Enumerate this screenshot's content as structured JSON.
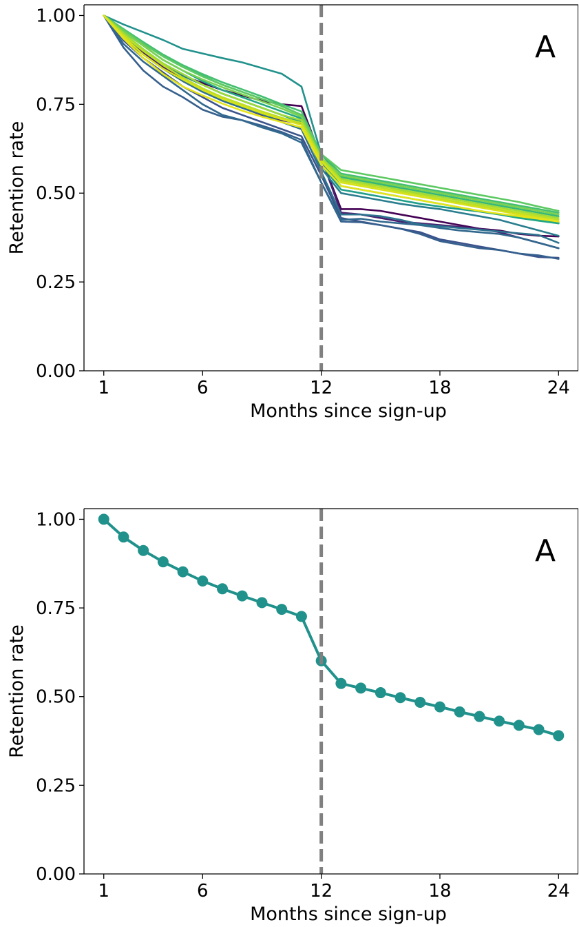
{
  "chart_data": [
    {
      "type": "line",
      "panel_label": "A",
      "xlabel": "Months since sign-up",
      "ylabel": "Retention rate",
      "xlim": [
        0,
        25
      ],
      "ylim": [
        0,
        1.03
      ],
      "xticks": [
        1,
        6,
        12,
        18,
        24
      ],
      "yticks": [
        0,
        0.25,
        0.5,
        0.75,
        1.0
      ],
      "ytick_labels": [
        "0.00",
        "0.25",
        "0.50",
        "0.75",
        "1.00"
      ],
      "xtick_labels": [
        "1",
        "6",
        "12",
        "18",
        "24"
      ],
      "vline": {
        "x": 12,
        "style": "dashed",
        "color": "#808080"
      },
      "grid": false,
      "legend": "none",
      "x": [
        1,
        2,
        3,
        4,
        5,
        6,
        7,
        8,
        9,
        10,
        11,
        12,
        13,
        14,
        15,
        16,
        17,
        18,
        19,
        20,
        21,
        22,
        23,
        24
      ],
      "series": [
        {
          "color": "#21918c",
          "values": [
            1.0,
            0.975,
            0.953,
            0.931,
            0.906,
            0.893,
            0.88,
            0.868,
            0.852,
            0.836,
            0.8,
            0.61,
            0.548,
            0.535,
            0.525,
            0.51,
            0.496,
            0.484,
            0.473,
            0.462,
            0.451,
            0.44,
            0.43,
            0.415
          ]
        },
        {
          "color": "#440154",
          "values": [
            1.0,
            0.95,
            0.9,
            0.86,
            0.83,
            0.81,
            0.79,
            0.775,
            0.76,
            0.75,
            0.745,
            0.6,
            0.455,
            0.455,
            0.45,
            0.44,
            0.43,
            0.42,
            0.41,
            0.4,
            0.395,
            0.385,
            0.38,
            0.378
          ]
        },
        {
          "color": "#481f70",
          "values": [
            1.0,
            0.94,
            0.895,
            0.855,
            0.82,
            0.79,
            0.76,
            0.74,
            0.72,
            0.705,
            0.695,
            0.6,
            0.445,
            0.44,
            0.43,
            0.42,
            0.415,
            0.41,
            0.405,
            0.4,
            0.39,
            0.375,
            0.36,
            0.345
          ]
        },
        {
          "color": "#3b528b",
          "values": [
            1.0,
            0.93,
            0.88,
            0.84,
            0.8,
            0.77,
            0.74,
            0.72,
            0.7,
            0.68,
            0.66,
            0.55,
            0.43,
            0.42,
            0.41,
            0.4,
            0.39,
            0.37,
            0.36,
            0.35,
            0.34,
            0.33,
            0.32,
            0.318
          ]
        },
        {
          "color": "#355f8d",
          "values": [
            1.0,
            0.91,
            0.845,
            0.8,
            0.77,
            0.735,
            0.715,
            0.705,
            0.69,
            0.672,
            0.65,
            0.53,
            0.42,
            0.418,
            0.41,
            0.4,
            0.385,
            0.365,
            0.355,
            0.345,
            0.34,
            0.33,
            0.325,
            0.315
          ]
        },
        {
          "color": "#31688e",
          "values": [
            1.0,
            0.92,
            0.87,
            0.83,
            0.79,
            0.75,
            0.72,
            0.705,
            0.685,
            0.668,
            0.642,
            0.53,
            0.425,
            0.428,
            0.42,
            0.415,
            0.41,
            0.402,
            0.395,
            0.39,
            0.385,
            0.375,
            0.36,
            0.345
          ]
        },
        {
          "color": "#2c728e",
          "values": [
            1.0,
            0.935,
            0.89,
            0.85,
            0.815,
            0.785,
            0.76,
            0.74,
            0.722,
            0.7,
            0.68,
            0.56,
            0.44,
            0.44,
            0.435,
            0.425,
            0.412,
            0.407,
            0.402,
            0.397,
            0.392,
            0.387,
            0.382,
            0.36
          ]
        },
        {
          "color": "#287d8e",
          "values": [
            1.0,
            0.94,
            0.9,
            0.86,
            0.83,
            0.805,
            0.78,
            0.76,
            0.74,
            0.72,
            0.7,
            0.57,
            0.5,
            0.49,
            0.48,
            0.47,
            0.462,
            0.455,
            0.445,
            0.435,
            0.425,
            0.41,
            0.395,
            0.38
          ]
        },
        {
          "color": "#1f9e89",
          "values": [
            1.0,
            0.95,
            0.905,
            0.865,
            0.835,
            0.805,
            0.78,
            0.76,
            0.74,
            0.72,
            0.7,
            0.58,
            0.51,
            0.5,
            0.49,
            0.48,
            0.47,
            0.462,
            0.455,
            0.448,
            0.44,
            0.433,
            0.425,
            0.418
          ]
        },
        {
          "color": "#22a884",
          "values": [
            1.0,
            0.955,
            0.915,
            0.875,
            0.845,
            0.815,
            0.79,
            0.77,
            0.75,
            0.73,
            0.71,
            0.59,
            0.52,
            0.51,
            0.5,
            0.49,
            0.48,
            0.47,
            0.46,
            0.45,
            0.44,
            0.43,
            0.422,
            0.415
          ]
        },
        {
          "color": "#35b779",
          "values": [
            1.0,
            0.96,
            0.92,
            0.885,
            0.855,
            0.83,
            0.805,
            0.785,
            0.765,
            0.745,
            0.72,
            0.6,
            0.545,
            0.535,
            0.525,
            0.515,
            0.505,
            0.495,
            0.485,
            0.475,
            0.465,
            0.455,
            0.445,
            0.435
          ]
        },
        {
          "color": "#44bf70",
          "values": [
            1.0,
            0.962,
            0.925,
            0.89,
            0.86,
            0.835,
            0.812,
            0.792,
            0.772,
            0.75,
            0.73,
            0.61,
            0.555,
            0.545,
            0.535,
            0.525,
            0.515,
            0.505,
            0.495,
            0.485,
            0.475,
            0.465,
            0.455,
            0.445
          ]
        },
        {
          "color": "#5ec962",
          "values": [
            1.0,
            0.96,
            0.92,
            0.885,
            0.855,
            0.828,
            0.805,
            0.785,
            0.765,
            0.745,
            0.72,
            0.61,
            0.565,
            0.555,
            0.545,
            0.535,
            0.525,
            0.515,
            0.505,
            0.495,
            0.485,
            0.475,
            0.462,
            0.45
          ]
        },
        {
          "color": "#7ad151",
          "values": [
            1.0,
            0.955,
            0.915,
            0.875,
            0.845,
            0.82,
            0.798,
            0.778,
            0.758,
            0.738,
            0.715,
            0.6,
            0.55,
            0.54,
            0.53,
            0.52,
            0.51,
            0.5,
            0.49,
            0.48,
            0.47,
            0.46,
            0.45,
            0.44
          ]
        },
        {
          "color": "#a0da39",
          "values": [
            1.0,
            0.95,
            0.905,
            0.865,
            0.835,
            0.805,
            0.78,
            0.76,
            0.74,
            0.72,
            0.705,
            0.6,
            0.54,
            0.53,
            0.52,
            0.51,
            0.5,
            0.49,
            0.48,
            0.47,
            0.46,
            0.45,
            0.44,
            0.43
          ]
        },
        {
          "color": "#bddf26",
          "values": [
            1.0,
            0.945,
            0.9,
            0.86,
            0.825,
            0.795,
            0.77,
            0.75,
            0.73,
            0.712,
            0.698,
            0.595,
            0.535,
            0.525,
            0.515,
            0.505,
            0.495,
            0.485,
            0.475,
            0.465,
            0.455,
            0.445,
            0.435,
            0.425
          ]
        },
        {
          "color": "#d8e219",
          "values": [
            1.0,
            0.94,
            0.89,
            0.85,
            0.82,
            0.79,
            0.765,
            0.745,
            0.725,
            0.708,
            0.692,
            0.59,
            0.53,
            0.52,
            0.51,
            0.5,
            0.49,
            0.48,
            0.47,
            0.46,
            0.45,
            0.44,
            0.43,
            0.42
          ]
        },
        {
          "color": "#e5e419",
          "values": [
            1.0,
            0.935,
            0.88,
            0.835,
            0.8,
            0.775,
            0.752,
            0.732,
            0.715,
            0.7,
            0.685,
            0.58,
            0.52,
            0.51,
            0.5,
            0.49,
            0.48,
            0.47,
            0.46,
            0.45,
            0.442,
            0.435,
            0.428,
            0.42
          ]
        }
      ]
    },
    {
      "type": "line",
      "panel_label": "A",
      "xlabel": "Months since sign-up",
      "ylabel": "Retention rate",
      "xlim": [
        0,
        25
      ],
      "ylim": [
        0,
        1.03
      ],
      "xticks": [
        1,
        6,
        12,
        18,
        24
      ],
      "yticks": [
        0,
        0.25,
        0.5,
        0.75,
        1.0
      ],
      "ytick_labels": [
        "0.00",
        "0.25",
        "0.50",
        "0.75",
        "1.00"
      ],
      "xtick_labels": [
        "1",
        "6",
        "12",
        "18",
        "24"
      ],
      "vline": {
        "x": 12,
        "style": "dashed",
        "color": "#808080"
      },
      "grid": false,
      "legend": "none",
      "markers": true,
      "x": [
        1,
        2,
        3,
        4,
        5,
        6,
        7,
        8,
        9,
        10,
        11,
        12,
        13,
        14,
        15,
        16,
        17,
        18,
        19,
        20,
        21,
        22,
        23,
        24
      ],
      "series": [
        {
          "color": "#21918c",
          "values": [
            1.0,
            0.95,
            0.912,
            0.88,
            0.852,
            0.826,
            0.804,
            0.784,
            0.765,
            0.746,
            0.726,
            0.601,
            0.537,
            0.524,
            0.511,
            0.497,
            0.484,
            0.471,
            0.457,
            0.444,
            0.431,
            0.419,
            0.407,
            0.39
          ]
        }
      ]
    }
  ]
}
